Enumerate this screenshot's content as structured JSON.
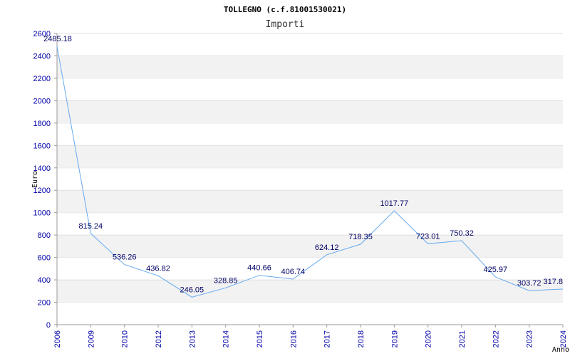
{
  "chart_data": {
    "type": "line",
    "title": "TOLLEGNO (c.f.81001530021)",
    "subtitle": "Importi",
    "xlabel": "Anno",
    "ylabel": "Euro",
    "categories": [
      "2006",
      "2009",
      "2010",
      "2012",
      "2013",
      "2014",
      "2015",
      "2016",
      "2017",
      "2018",
      "2019",
      "2020",
      "2021",
      "2022",
      "2023",
      "2024"
    ],
    "values": [
      2485.18,
      815.24,
      536.26,
      436.82,
      246.05,
      328.85,
      440.66,
      406.74,
      624.12,
      718.35,
      1017.77,
      723.01,
      750.32,
      425.97,
      303.72,
      317.8
    ],
    "value_labels": [
      "2485.18",
      "815.24",
      "536.26",
      "436.82",
      "246.05",
      "328.85",
      "440.66",
      "406.74",
      "624.12",
      "718.35",
      "1017.77",
      "723.01",
      "750.32",
      "425.97",
      "303.72",
      "317.8"
    ],
    "ylim": [
      0,
      2600
    ],
    "yticks": [
      0,
      200,
      400,
      600,
      800,
      1000,
      1200,
      1400,
      1600,
      1800,
      2000,
      2200,
      2400,
      2600
    ],
    "grid": "horizontal alternating bands",
    "colors": {
      "line": "#66aaee",
      "band": "#f2f2f2",
      "tick_text": "#0000aa",
      "label_text": "#000066"
    }
  }
}
